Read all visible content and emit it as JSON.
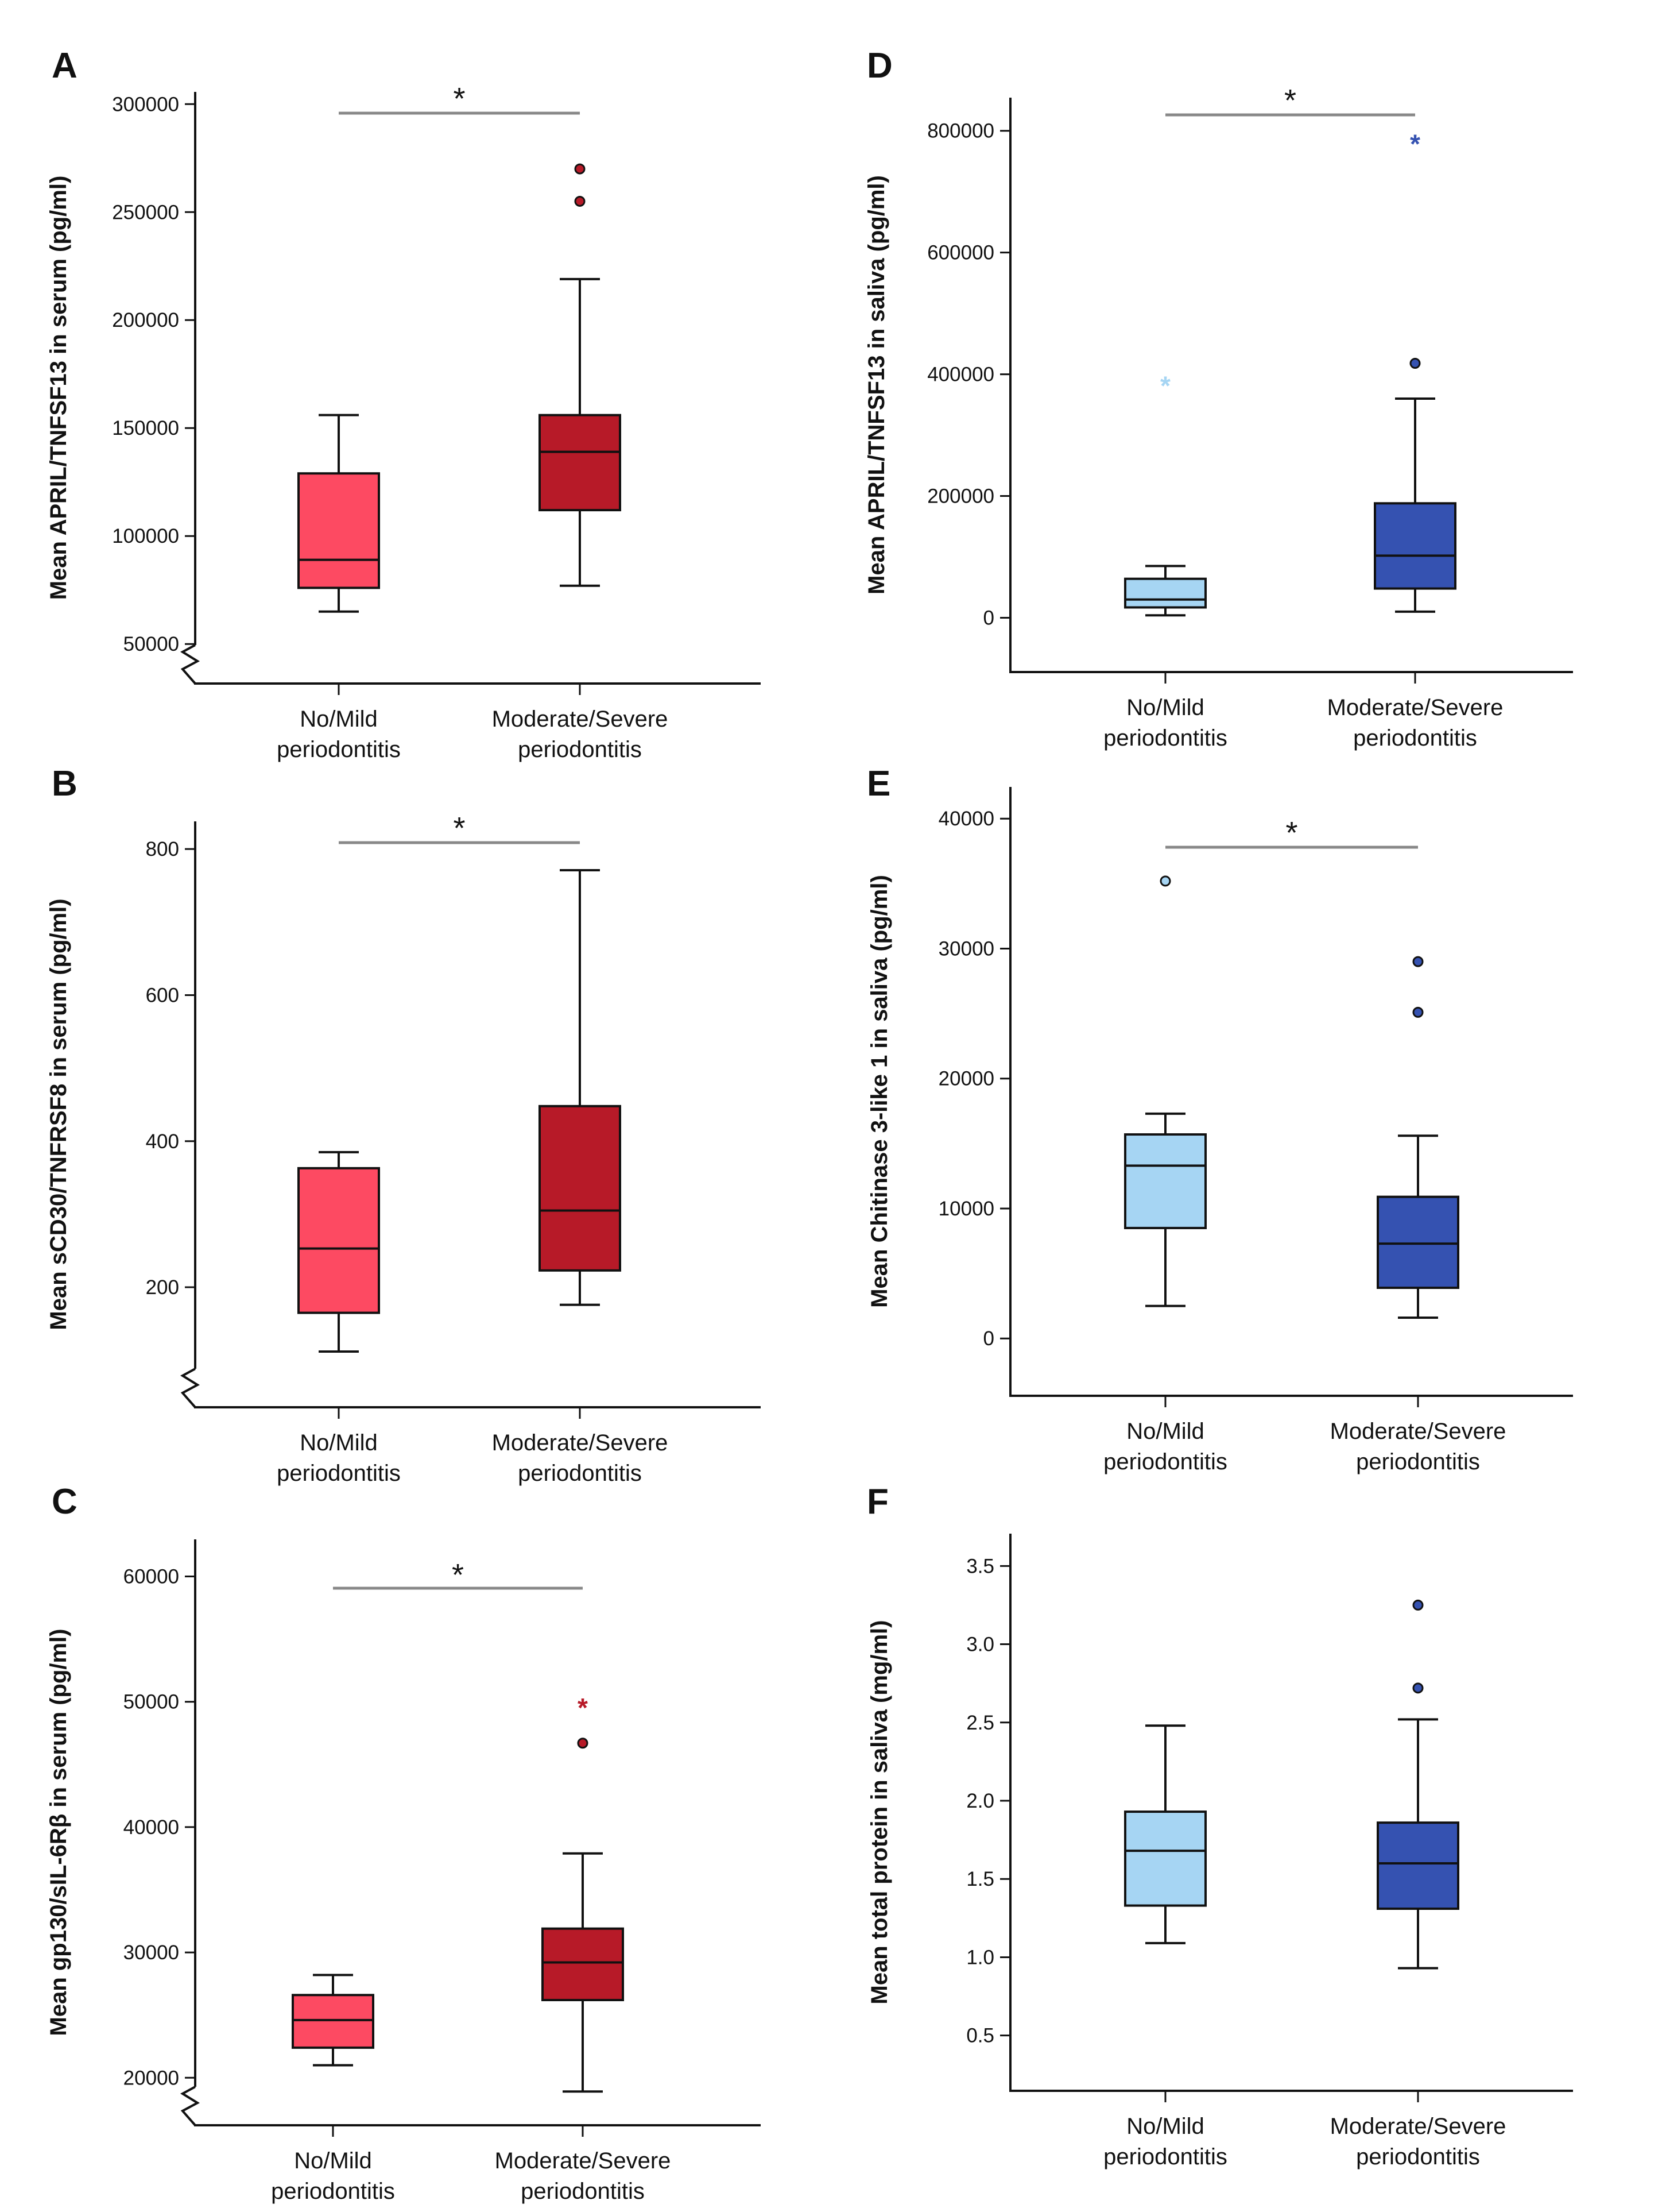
{
  "figure": {
    "category_labels": [
      [
        "No/Mild",
        "periodontitis"
      ],
      [
        "Moderate/Severe",
        "periodontitis"
      ]
    ],
    "colors": {
      "serum_no_mild": "#fd4a62",
      "serum_mod_severe": "#b71a28",
      "saliva_no_mild": "#a6d5f3",
      "saliva_mod_severe": "#3552b1",
      "significance_bar": "#888888",
      "axis": "#111111"
    }
  },
  "chart_data": [
    {
      "panel": "A",
      "type": "box",
      "ylabel": "Mean APRIL/TNFSF13 in serum (pg/ml)",
      "yticks": [
        50000,
        100000,
        150000,
        200000,
        250000,
        300000
      ],
      "ytick_labels": [
        "50000",
        "100000",
        "150000",
        "200000",
        "250000",
        "300000"
      ],
      "ylim": [
        45000,
        303000
      ],
      "axis_break": true,
      "significance": "*",
      "boxes": [
        {
          "category": "No/Mild periodontitis",
          "whisker_low": 65000,
          "q1": 76000,
          "median": 89000,
          "q3": 129000,
          "whisker_high": 156000,
          "outliers": [],
          "extremes": [],
          "color": "#fd4a62"
        },
        {
          "category": "Moderate/Severe periodontitis",
          "whisker_low": 77000,
          "q1": 112000,
          "median": 139000,
          "q3": 156000,
          "whisker_high": 219000,
          "outliers": [
            255000,
            270000
          ],
          "extremes": [],
          "color": "#b71a28"
        }
      ]
    },
    {
      "panel": "B",
      "type": "box",
      "ylabel": "Mean sCD30/TNFRSF8 in serum (pg/ml)",
      "yticks": [
        200,
        400,
        600,
        800
      ],
      "ytick_labels": [
        "200",
        "400",
        "600",
        "800"
      ],
      "ylim": [
        75,
        830
      ],
      "axis_break": true,
      "significance": "*",
      "boxes": [
        {
          "category": "No/Mild periodontitis",
          "whisker_low": 112,
          "q1": 165,
          "median": 253,
          "q3": 363,
          "whisker_high": 385,
          "outliers": [],
          "extremes": [],
          "color": "#fd4a62"
        },
        {
          "category": "Moderate/Severe periodontitis",
          "whisker_low": 176,
          "q1": 223,
          "median": 305,
          "q3": 448,
          "whisker_high": 771,
          "outliers": [],
          "extremes": [],
          "color": "#b71a28"
        }
      ]
    },
    {
      "panel": "C",
      "type": "box",
      "ylabel": "Mean gp130/sIL-6Rβ in serum (pg/ml)",
      "yticks": [
        20000,
        30000,
        40000,
        50000,
        60000
      ],
      "ytick_labels": [
        "20000",
        "30000",
        "40000",
        "50000",
        "60000"
      ],
      "ylim": [
        18500,
        62500
      ],
      "axis_break": true,
      "significance": "*",
      "boxes": [
        {
          "category": "No/Mild periodontitis",
          "whisker_low": 21000,
          "q1": 22400,
          "median": 24600,
          "q3": 26600,
          "whisker_high": 28200,
          "outliers": [],
          "extremes": [],
          "color": "#fd4a62"
        },
        {
          "category": "Moderate/Severe periodontitis",
          "whisker_low": 18900,
          "q1": 26200,
          "median": 29200,
          "q3": 31900,
          "whisker_high": 37900,
          "outliers": [
            46700
          ],
          "extremes": [
            49800
          ],
          "color": "#b71a28"
        }
      ]
    },
    {
      "panel": "D",
      "type": "box",
      "ylabel": "Mean APRIL/TNFSF13 in saliva (pg/ml)",
      "yticks": [
        0,
        200000,
        400000,
        600000,
        800000
      ],
      "ytick_labels": [
        "0",
        "200000",
        "400000",
        "600000",
        "800000"
      ],
      "ylim": [
        -42000,
        845000
      ],
      "axis_break": false,
      "significance": "*",
      "boxes": [
        {
          "category": "No/Mild periodontitis",
          "whisker_low": 4000,
          "q1": 17000,
          "median": 30000,
          "q3": 64000,
          "whisker_high": 85000,
          "outliers": [],
          "extremes": [
            387000
          ],
          "color": "#a6d5f3"
        },
        {
          "category": "Moderate/Severe periodontitis",
          "whisker_low": 10000,
          "q1": 48000,
          "median": 102000,
          "q3": 188000,
          "whisker_high": 360000,
          "outliers": [
            418000
          ],
          "extremes": [
            784000
          ],
          "color": "#3552b1"
        }
      ]
    },
    {
      "panel": "E",
      "type": "box",
      "ylabel": "Mean Chitinase 3-like 1 in saliva (pg/ml)",
      "yticks": [
        0,
        10000,
        20000,
        30000,
        40000
      ],
      "ytick_labels": [
        "0",
        "10000",
        "20000",
        "30000",
        "40000"
      ],
      "ylim": [
        -2200,
        42000
      ],
      "axis_break": false,
      "significance": "*",
      "boxes": [
        {
          "category": "No/Mild periodontitis",
          "whisker_low": 2500,
          "q1": 8500,
          "median": 13300,
          "q3": 15700,
          "whisker_high": 17300,
          "outliers": [
            35200
          ],
          "extremes": [],
          "color": "#a6d5f3"
        },
        {
          "category": "Moderate/Severe periodontitis",
          "whisker_low": 1600,
          "q1": 3900,
          "median": 7300,
          "q3": 10900,
          "whisker_high": 15600,
          "outliers": [
            25100,
            29000
          ],
          "extremes": [],
          "color": "#3552b1"
        }
      ]
    },
    {
      "panel": "F",
      "type": "box",
      "ylabel": "Mean total protein in saliva (mg/ml)",
      "yticks": [
        0.5,
        1.0,
        1.5,
        2.0,
        2.5,
        3.0,
        3.5
      ],
      "ytick_labels": [
        "0.5",
        "1.0",
        "1.5",
        "2.0",
        "2.5",
        "3.0",
        "3.5"
      ],
      "ylim": [
        0.33,
        3.67
      ],
      "axis_break": false,
      "significance": "",
      "boxes": [
        {
          "category": "No/Mild periodontitis",
          "whisker_low": 1.09,
          "q1": 1.33,
          "median": 1.68,
          "q3": 1.93,
          "whisker_high": 2.48,
          "outliers": [],
          "extremes": [],
          "color": "#a6d5f3"
        },
        {
          "category": "Moderate/Severe periodontitis",
          "whisker_low": 0.93,
          "q1": 1.31,
          "median": 1.6,
          "q3": 1.86,
          "whisker_high": 2.52,
          "outliers": [
            2.72,
            3.25
          ],
          "extremes": [],
          "color": "#3552b1"
        }
      ]
    }
  ]
}
